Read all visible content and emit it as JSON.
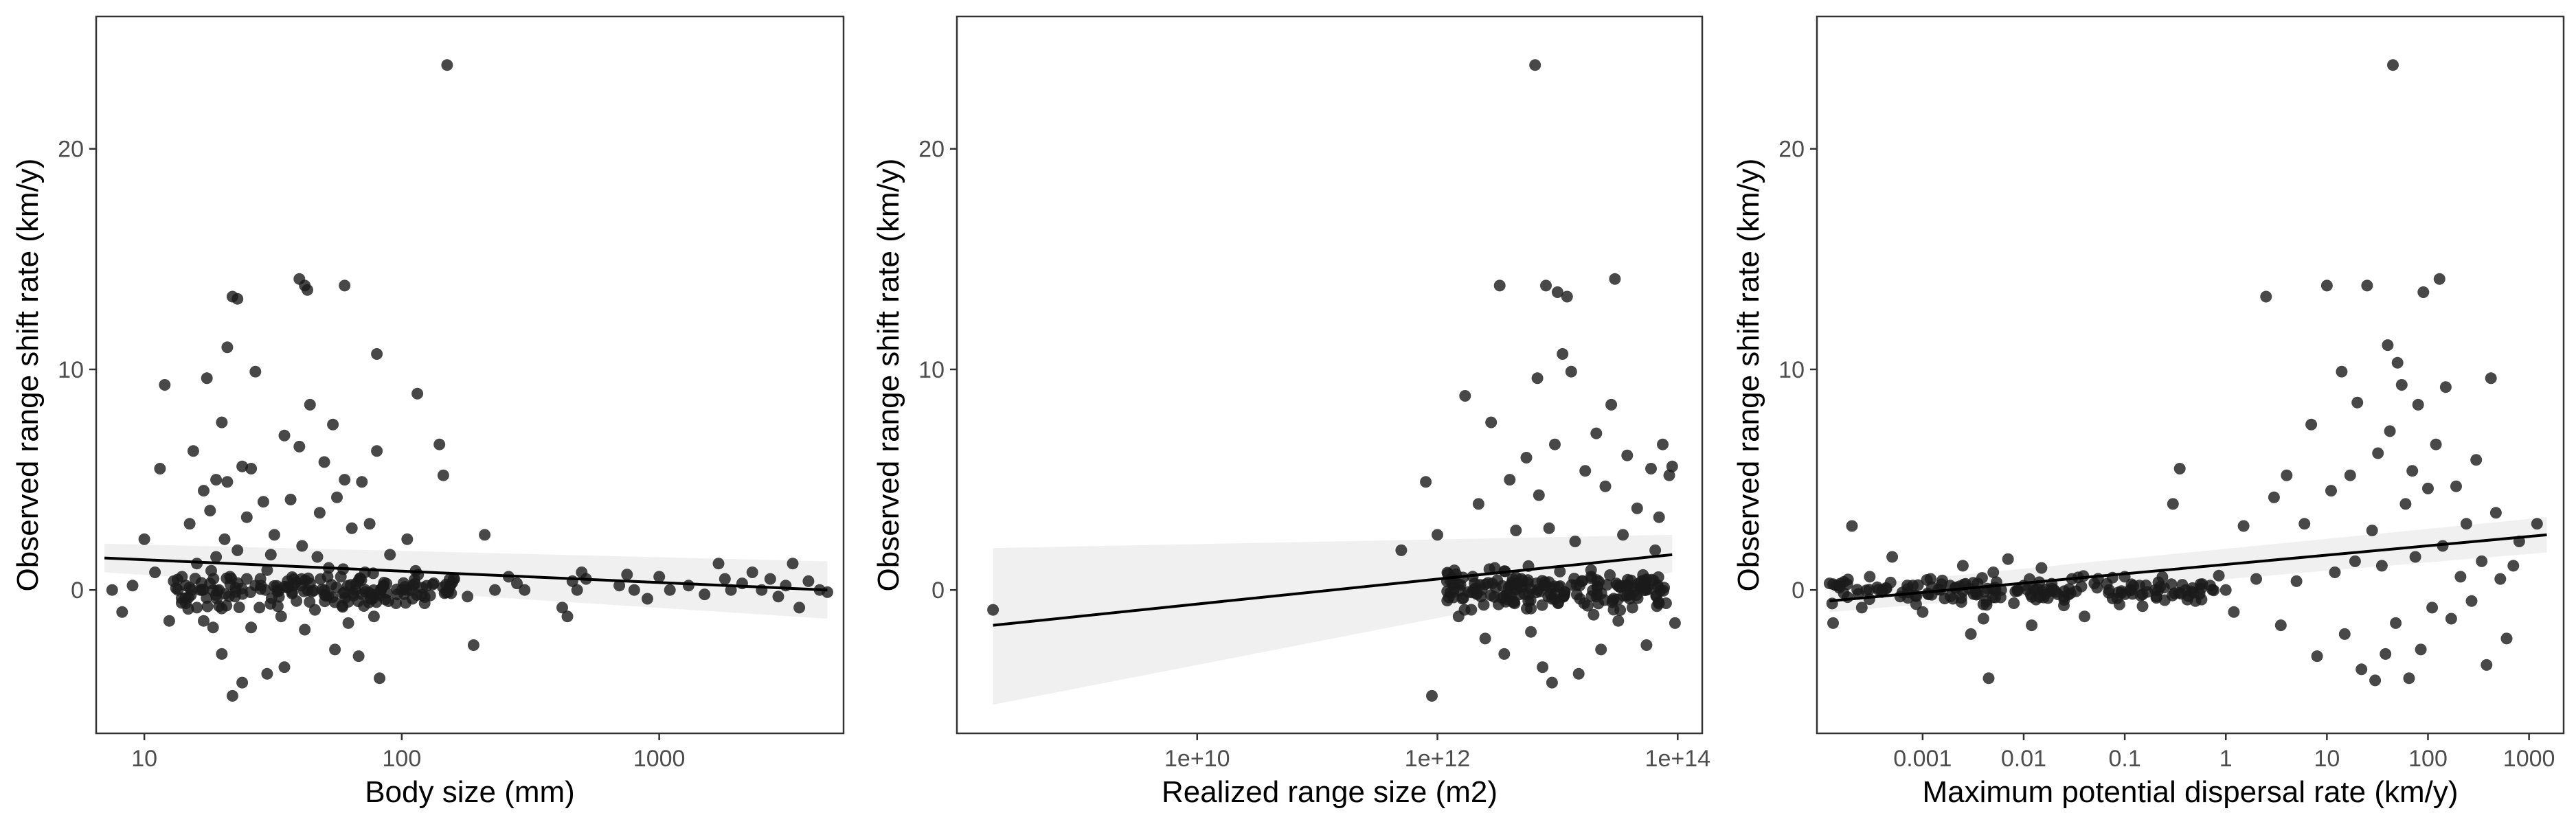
{
  "chart_data": [
    {
      "type": "scatter",
      "xlabel": "Body size (mm)",
      "ylabel": "Observed range shift rate (km/y)",
      "x_scale": "log10",
      "xlim": [
        6.5,
        5200
      ],
      "ylim": [
        -6.5,
        26
      ],
      "x_ticks": [
        {
          "value": 10,
          "label": "10"
        },
        {
          "value": 100,
          "label": "100"
        },
        {
          "value": 1000,
          "label": "1000"
        }
      ],
      "y_ticks": [
        {
          "value": 0,
          "label": "0"
        },
        {
          "value": 10,
          "label": "10"
        },
        {
          "value": 20,
          "label": "20"
        }
      ],
      "grid": false,
      "point_color": "#1a1a1a",
      "fit": {
        "x": [
          7,
          4500
        ],
        "y": [
          1.45,
          0.0
        ],
        "ci_lower": [
          0.8,
          -1.3
        ],
        "ci_upper": [
          2.1,
          1.3
        ]
      },
      "points": [
        [
          7.5,
          0.0
        ],
        [
          8.2,
          -1.0
        ],
        [
          9,
          0.2
        ],
        [
          10,
          2.3
        ],
        [
          11,
          0.8
        ],
        [
          11.5,
          5.5
        ],
        [
          12,
          9.3
        ],
        [
          12.5,
          -1.4
        ],
        [
          13,
          0.4
        ],
        [
          13.5,
          0.0
        ],
        [
          14,
          0.6
        ],
        [
          14.5,
          -0.6
        ],
        [
          15,
          3.0
        ],
        [
          15.5,
          6.3
        ],
        [
          16,
          1.2
        ],
        [
          16,
          -0.8
        ],
        [
          16.5,
          0.0
        ],
        [
          17,
          -1.4
        ],
        [
          17,
          4.5
        ],
        [
          17.5,
          9.6
        ],
        [
          18,
          3.6
        ],
        [
          18,
          0.3
        ],
        [
          18.5,
          -1.7
        ],
        [
          19,
          1.5
        ],
        [
          19,
          5.0
        ],
        [
          19.5,
          0.0
        ],
        [
          20,
          7.6
        ],
        [
          20,
          -2.9
        ],
        [
          20.5,
          2.3
        ],
        [
          21,
          11.0
        ],
        [
          21,
          4.9
        ],
        [
          21.5,
          0.6
        ],
        [
          22,
          -4.8
        ],
        [
          22,
          13.3
        ],
        [
          22.5,
          -0.3
        ],
        [
          23,
          13.2
        ],
        [
          23,
          1.8
        ],
        [
          24,
          5.6
        ],
        [
          24,
          -4.2
        ],
        [
          25,
          0.5
        ],
        [
          25,
          3.3
        ],
        [
          26,
          5.5
        ],
        [
          26,
          -1.7
        ],
        [
          27,
          9.9
        ],
        [
          27,
          0.2
        ],
        [
          28,
          -0.8
        ],
        [
          29,
          4.0
        ],
        [
          30,
          -3.8
        ],
        [
          30,
          0.9
        ],
        [
          31,
          1.6
        ],
        [
          32,
          2.5
        ],
        [
          33,
          0.0
        ],
        [
          34,
          -1.2
        ],
        [
          35,
          7.0
        ],
        [
          35,
          -3.5
        ],
        [
          36,
          0.4
        ],
        [
          37,
          4.1
        ],
        [
          38,
          0.2
        ],
        [
          39,
          -0.5
        ],
        [
          40,
          14.1
        ],
        [
          40,
          6.5
        ],
        [
          41,
          2.0
        ],
        [
          42,
          13.8
        ],
        [
          42,
          -1.8
        ],
        [
          43,
          13.6
        ],
        [
          44,
          8.4
        ],
        [
          44,
          0.3
        ],
        [
          46,
          -0.9
        ],
        [
          47,
          1.5
        ],
        [
          48,
          3.5
        ],
        [
          50,
          5.8
        ],
        [
          50,
          -0.2
        ],
        [
          52,
          1.0
        ],
        [
          54,
          7.5
        ],
        [
          55,
          -2.7
        ],
        [
          56,
          4.2
        ],
        [
          58,
          0.6
        ],
        [
          60,
          13.8
        ],
        [
          60,
          5.0
        ],
        [
          62,
          -1.5
        ],
        [
          64,
          2.8
        ],
        [
          66,
          0.0
        ],
        [
          68,
          -3.0
        ],
        [
          70,
          4.9
        ],
        [
          72,
          0.8
        ],
        [
          75,
          3.0
        ],
        [
          78,
          -1.2
        ],
        [
          80,
          10.7
        ],
        [
          80,
          6.3
        ],
        [
          82,
          -4.0
        ],
        [
          85,
          0.2
        ],
        [
          90,
          1.6
        ],
        [
          95,
          -0.6
        ],
        [
          100,
          0.0
        ],
        [
          105,
          2.3
        ],
        [
          110,
          -0.4
        ],
        [
          115,
          8.9
        ],
        [
          120,
          0.1
        ],
        [
          140,
          6.6
        ],
        [
          145,
          5.2
        ],
        [
          150,
          23.8
        ],
        [
          160,
          0.5
        ],
        [
          180,
          -0.3
        ],
        [
          190,
          -2.5
        ],
        [
          210,
          2.5
        ],
        [
          230,
          0.0
        ],
        [
          260,
          0.6
        ],
        [
          280,
          0.3
        ],
        [
          300,
          0.0
        ],
        [
          420,
          -0.8
        ],
        [
          440,
          -1.2
        ],
        [
          460,
          0.4
        ],
        [
          480,
          0.0
        ],
        [
          500,
          0.8
        ],
        [
          520,
          0.5
        ],
        [
          700,
          0.2
        ],
        [
          750,
          0.7
        ],
        [
          800,
          0.0
        ],
        [
          900,
          -0.4
        ],
        [
          1000,
          0.6
        ],
        [
          1100,
          0.0
        ],
        [
          1300,
          0.2
        ],
        [
          1500,
          -0.2
        ],
        [
          1700,
          1.2
        ],
        [
          1800,
          0.5
        ],
        [
          1900,
          0.0
        ],
        [
          2100,
          0.3
        ],
        [
          2300,
          0.8
        ],
        [
          2500,
          0.0
        ],
        [
          2700,
          0.5
        ],
        [
          2900,
          -0.3
        ],
        [
          3100,
          0.2
        ],
        [
          3300,
          1.2
        ],
        [
          3500,
          -0.8
        ],
        [
          3800,
          0.4
        ],
        [
          4200,
          0.0
        ],
        [
          4500,
          -0.1
        ]
      ],
      "dense_band": {
        "x_range": [
          13,
          160
        ],
        "y_center": 0.0,
        "y_spread": 1.2,
        "count": 150
      }
    },
    {
      "type": "scatter",
      "xlabel": "Realized range size (m2)",
      "ylabel": "Observed range shift rate (km/y)",
      "x_scale": "log10",
      "xlim": [
        100000000.0,
        160000000000000.0
      ],
      "ylim": [
        -6.5,
        26
      ],
      "x_ticks": [
        {
          "value": 10000000000.0,
          "label": "1e+10"
        },
        {
          "value": 1000000000000.0,
          "label": "1e+12"
        },
        {
          "value": 100000000000000.0,
          "label": "1e+14"
        }
      ],
      "y_ticks": [
        {
          "value": 0,
          "label": "0"
        },
        {
          "value": 10,
          "label": "10"
        },
        {
          "value": 20,
          "label": "20"
        }
      ],
      "grid": false,
      "point_color": "#1a1a1a",
      "fit": {
        "x": [
          200000000.0,
          90000000000000.0
        ],
        "y": [
          -1.6,
          1.6
        ],
        "ci_lower": [
          -5.2,
          0.8
        ],
        "ci_upper": [
          1.9,
          2.5
        ]
      },
      "points": [
        [
          200000000.0,
          -0.9
        ],
        [
          500000000000.0,
          1.8
        ],
        [
          800000000000.0,
          4.9
        ],
        [
          900000000000.0,
          -4.8
        ],
        [
          1000000000000.0,
          2.5
        ],
        [
          1200000000000.0,
          0.4
        ],
        [
          1500000000000.0,
          -1.2
        ],
        [
          1700000000000.0,
          8.8
        ],
        [
          2000000000000.0,
          0.0
        ],
        [
          2200000000000.0,
          3.9
        ],
        [
          2500000000000.0,
          -2.2
        ],
        [
          2800000000000.0,
          7.6
        ],
        [
          3000000000000.0,
          1.0
        ],
        [
          3300000000000.0,
          13.8
        ],
        [
          3600000000000.0,
          -2.9
        ],
        [
          4000000000000.0,
          5.0
        ],
        [
          4500000000000.0,
          2.7
        ],
        [
          5000000000000.0,
          0.5
        ],
        [
          5500000000000.0,
          6.0
        ],
        [
          6000000000000.0,
          -1.9
        ],
        [
          6500000000000.0,
          23.8
        ],
        [
          6800000000000.0,
          9.6
        ],
        [
          7000000000000.0,
          4.3
        ],
        [
          7500000000000.0,
          -3.5
        ],
        [
          8000000000000.0,
          13.8
        ],
        [
          8500000000000.0,
          2.8
        ],
        [
          9000000000000.0,
          -4.2
        ],
        [
          9500000000000.0,
          6.6
        ],
        [
          10000000000000.0,
          13.5
        ],
        [
          11000000000000.0,
          10.7
        ],
        [
          12000000000000.0,
          13.3
        ],
        [
          13000000000000.0,
          9.9
        ],
        [
          14000000000000.0,
          2.2
        ],
        [
          15000000000000.0,
          -3.8
        ],
        [
          17000000000000.0,
          5.4
        ],
        [
          19000000000000.0,
          0.9
        ],
        [
          21000000000000.0,
          7.1
        ],
        [
          23000000000000.0,
          -2.7
        ],
        [
          25000000000000.0,
          4.7
        ],
        [
          28000000000000.0,
          8.4
        ],
        [
          30000000000000.0,
          14.1
        ],
        [
          32000000000000.0,
          -1.4
        ],
        [
          35000000000000.0,
          2.5
        ],
        [
          38000000000000.0,
          6.1
        ],
        [
          42000000000000.0,
          -0.8
        ],
        [
          46000000000000.0,
          3.7
        ],
        [
          50000000000000.0,
          0.4
        ],
        [
          55000000000000.0,
          -2.5
        ],
        [
          60000000000000.0,
          5.5
        ],
        [
          65000000000000.0,
          1.8
        ],
        [
          70000000000000.0,
          3.3
        ],
        [
          75000000000000.0,
          6.6
        ],
        [
          80000000000000.0,
          -0.6
        ],
        [
          85000000000000.0,
          5.2
        ],
        [
          90000000000000.0,
          5.6
        ],
        [
          95000000000000.0,
          -1.5
        ]
      ],
      "dense_band": {
        "x_range": [
          1200000000000.0,
          80000000000000.0
        ],
        "y_center": 0.0,
        "y_spread": 1.3,
        "count": 180
      }
    },
    {
      "type": "scatter",
      "xlabel": "Maximum potential dispersal rate (km/y)",
      "ylabel": "Observed range shift rate (km/y)",
      "x_scale": "log10",
      "xlim": [
        9e-05,
        2200
      ],
      "ylim": [
        -6.5,
        26
      ],
      "x_ticks": [
        {
          "value": 0.001,
          "label": "0.001"
        },
        {
          "value": 0.01,
          "label": "0.01"
        },
        {
          "value": 0.1,
          "label": "0.1"
        },
        {
          "value": 1,
          "label": "1"
        },
        {
          "value": 10,
          "label": "10"
        },
        {
          "value": 100,
          "label": "100"
        },
        {
          "value": 1000,
          "label": "1000"
        }
      ],
      "y_ticks": [
        {
          "value": 0,
          "label": "0"
        },
        {
          "value": 10,
          "label": "10"
        },
        {
          "value": 20,
          "label": "20"
        }
      ],
      "grid": false,
      "point_color": "#1a1a1a",
      "fit": {
        "x": [
          0.00012,
          1500
        ],
        "y": [
          -0.5,
          2.5
        ],
        "ci_lower": [
          -1.0,
          1.7
        ],
        "ci_upper": [
          0.1,
          3.3
        ]
      },
      "points": [
        [
          0.00012,
          0.3
        ],
        [
          0.00013,
          -1.5
        ],
        [
          0.00015,
          0.1
        ],
        [
          0.0002,
          2.9
        ],
        [
          0.00025,
          -0.8
        ],
        [
          0.0003,
          0.6
        ],
        [
          0.0004,
          0.0
        ],
        [
          0.0005,
          1.5
        ],
        [
          0.0006,
          -0.3
        ],
        [
          0.0008,
          0.2
        ],
        [
          0.001,
          -1.0
        ],
        [
          0.0012,
          0.5
        ],
        [
          0.0015,
          0.0
        ],
        [
          0.002,
          -0.4
        ],
        [
          0.0025,
          1.1
        ],
        [
          0.003,
          -2.0
        ],
        [
          0.0035,
          0.3
        ],
        [
          0.004,
          -1.3
        ],
        [
          0.0045,
          -4.0
        ],
        [
          0.005,
          0.8
        ],
        [
          0.006,
          0.0
        ],
        [
          0.007,
          1.4
        ],
        [
          0.008,
          -0.6
        ],
        [
          0.01,
          0.2
        ],
        [
          0.012,
          -1.6
        ],
        [
          0.015,
          1.0
        ],
        [
          0.02,
          0.0
        ],
        [
          0.025,
          -0.7
        ],
        [
          0.03,
          0.5
        ],
        [
          0.04,
          -1.2
        ],
        [
          0.05,
          0.3
        ],
        [
          0.07,
          0.0
        ],
        [
          0.1,
          0.6
        ],
        [
          0.15,
          -0.2
        ],
        [
          0.2,
          0.0
        ],
        [
          0.3,
          3.9
        ],
        [
          0.35,
          5.5
        ],
        [
          0.4,
          0.0
        ],
        [
          0.5,
          -0.5
        ],
        [
          0.7,
          0.2
        ],
        [
          1,
          0.0
        ],
        [
          1.2,
          -1.0
        ],
        [
          1.5,
          2.9
        ],
        [
          2,
          0.5
        ],
        [
          2.5,
          13.3
        ],
        [
          3,
          4.2
        ],
        [
          3.5,
          -1.6
        ],
        [
          4,
          5.2
        ],
        [
          5,
          0.4
        ],
        [
          6,
          3.0
        ],
        [
          7,
          7.5
        ],
        [
          8,
          -3.0
        ],
        [
          10,
          13.8
        ],
        [
          11,
          4.5
        ],
        [
          12,
          0.8
        ],
        [
          14,
          9.9
        ],
        [
          15,
          -2.0
        ],
        [
          17,
          5.2
        ],
        [
          19,
          1.3
        ],
        [
          20,
          8.5
        ],
        [
          22,
          -3.6
        ],
        [
          25,
          13.8
        ],
        [
          28,
          2.7
        ],
        [
          30,
          -4.1
        ],
        [
          32,
          6.2
        ],
        [
          35,
          1.1
        ],
        [
          38,
          -2.9
        ],
        [
          40,
          11.1
        ],
        [
          42,
          7.2
        ],
        [
          45,
          23.8
        ],
        [
          48,
          -1.5
        ],
        [
          50,
          10.3
        ],
        [
          55,
          9.3
        ],
        [
          60,
          3.9
        ],
        [
          65,
          -4.0
        ],
        [
          70,
          5.4
        ],
        [
          75,
          1.5
        ],
        [
          80,
          8.4
        ],
        [
          85,
          -2.7
        ],
        [
          90,
          13.5
        ],
        [
          100,
          4.6
        ],
        [
          110,
          -0.8
        ],
        [
          120,
          6.6
        ],
        [
          130,
          14.1
        ],
        [
          140,
          2.0
        ],
        [
          150,
          9.2
        ],
        [
          170,
          -1.3
        ],
        [
          190,
          4.7
        ],
        [
          210,
          0.6
        ],
        [
          240,
          3.0
        ],
        [
          270,
          -0.5
        ],
        [
          300,
          5.9
        ],
        [
          340,
          1.3
        ],
        [
          380,
          -3.4
        ],
        [
          420,
          9.6
        ],
        [
          470,
          3.5
        ],
        [
          520,
          0.5
        ],
        [
          600,
          -2.2
        ],
        [
          700,
          1.1
        ],
        [
          800,
          2.2
        ],
        [
          1200,
          3.0
        ]
      ],
      "dense_band": {
        "x_range": [
          0.00012,
          0.9
        ],
        "y_center": 0.0,
        "y_spread": 0.9,
        "count": 150
      }
    }
  ]
}
